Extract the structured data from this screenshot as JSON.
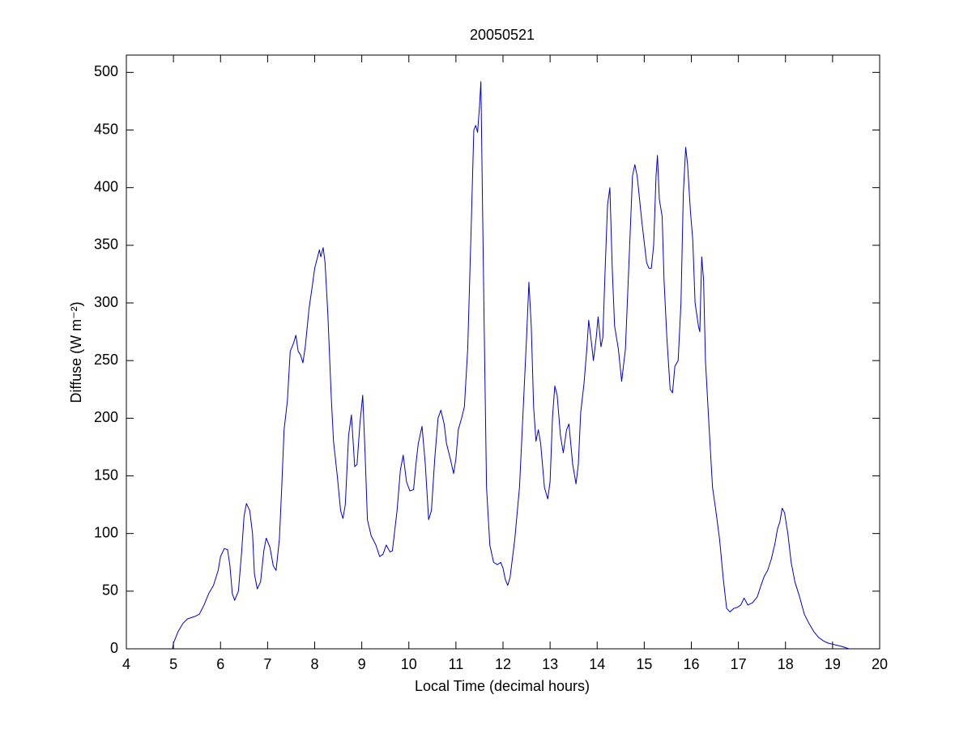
{
  "chart_data": {
    "type": "line",
    "title": "20050521",
    "xlabel": "Local Time (decimal hours)",
    "ylabel": "Diffuse (W m⁻²)",
    "color": "#0000cc",
    "xlim": [
      4,
      20
    ],
    "xticks": [
      4,
      5,
      6,
      7,
      8,
      9,
      10,
      11,
      12,
      13,
      14,
      15,
      16,
      17,
      18,
      19,
      20
    ],
    "ylim": [
      0,
      515
    ],
    "yticks": [
      0,
      50,
      100,
      150,
      200,
      250,
      300,
      350,
      400,
      450,
      500
    ],
    "x": [
      4.98,
      5.0,
      5.1,
      5.2,
      5.3,
      5.45,
      5.55,
      5.65,
      5.75,
      5.85,
      5.95,
      6.0,
      6.08,
      6.15,
      6.2,
      6.25,
      6.3,
      6.38,
      6.45,
      6.5,
      6.55,
      6.62,
      6.68,
      6.72,
      6.78,
      6.85,
      6.92,
      6.97,
      7.05,
      7.12,
      7.18,
      7.25,
      7.3,
      7.35,
      7.42,
      7.48,
      7.55,
      7.6,
      7.65,
      7.7,
      7.75,
      7.8,
      7.88,
      7.95,
      8.0,
      8.05,
      8.1,
      8.13,
      8.18,
      8.22,
      8.28,
      8.35,
      8.4,
      8.48,
      8.55,
      8.6,
      8.65,
      8.72,
      8.78,
      8.85,
      8.9,
      8.96,
      9.02,
      9.07,
      9.12,
      9.2,
      9.3,
      9.38,
      9.45,
      9.52,
      9.6,
      9.65,
      9.75,
      9.82,
      9.88,
      9.95,
      10.02,
      10.1,
      10.15,
      10.2,
      10.28,
      10.35,
      10.42,
      10.48,
      10.55,
      10.62,
      10.68,
      10.75,
      10.8,
      10.88,
      10.95,
      11.0,
      11.05,
      11.12,
      11.18,
      11.25,
      11.32,
      11.38,
      11.42,
      11.46,
      11.5,
      11.53,
      11.56,
      11.6,
      11.65,
      11.72,
      11.8,
      11.88,
      11.95,
      12.0,
      12.05,
      12.1,
      12.15,
      12.25,
      12.35,
      12.42,
      12.5,
      12.55,
      12.6,
      12.65,
      12.7,
      12.75,
      12.8,
      12.88,
      12.95,
      13.0,
      13.05,
      13.1,
      13.15,
      13.22,
      13.28,
      13.35,
      13.4,
      13.48,
      13.55,
      13.6,
      13.65,
      13.72,
      13.78,
      13.82,
      13.88,
      13.92,
      13.98,
      14.02,
      14.08,
      14.12,
      14.17,
      14.22,
      14.27,
      14.32,
      14.37,
      14.45,
      14.52,
      14.6,
      14.7,
      14.75,
      14.8,
      14.85,
      14.95,
      15.05,
      15.1,
      15.15,
      15.2,
      15.25,
      15.28,
      15.32,
      15.38,
      15.42,
      15.48,
      15.55,
      15.6,
      15.65,
      15.72,
      15.78,
      15.83,
      15.88,
      15.92,
      15.98,
      16.03,
      16.08,
      16.15,
      16.18,
      16.22,
      16.26,
      16.3,
      16.38,
      16.45,
      16.52,
      16.6,
      16.68,
      16.75,
      16.82,
      16.9,
      16.98,
      17.05,
      17.12,
      17.2,
      17.3,
      17.4,
      17.48,
      17.55,
      17.62,
      17.7,
      17.78,
      17.83,
      17.88,
      17.93,
      17.98,
      18.05,
      18.12,
      18.2,
      18.3,
      18.4,
      18.5,
      18.6,
      18.7,
      18.8,
      18.9,
      19.0,
      19.1,
      19.2,
      19.35
    ],
    "values": [
      0,
      5,
      15,
      22,
      26,
      28,
      30,
      38,
      48,
      55,
      68,
      80,
      87,
      86,
      72,
      48,
      42,
      50,
      85,
      115,
      126,
      120,
      100,
      65,
      52,
      58,
      85,
      96,
      88,
      72,
      68,
      95,
      140,
      190,
      215,
      258,
      265,
      272,
      258,
      255,
      248,
      262,
      295,
      315,
      330,
      338,
      346,
      340,
      348,
      335,
      290,
      220,
      180,
      150,
      120,
      113,
      125,
      185,
      203,
      158,
      160,
      195,
      220,
      170,
      112,
      98,
      90,
      80,
      82,
      90,
      84,
      85,
      120,
      155,
      168,
      145,
      137,
      138,
      160,
      178,
      193,
      160,
      112,
      120,
      165,
      200,
      207,
      195,
      178,
      165,
      152,
      165,
      190,
      200,
      210,
      260,
      360,
      450,
      454,
      448,
      470,
      492,
      400,
      280,
      140,
      90,
      75,
      73,
      75,
      70,
      60,
      55,
      62,
      95,
      140,
      200,
      270,
      318,
      280,
      210,
      180,
      190,
      178,
      140,
      130,
      145,
      200,
      228,
      220,
      185,
      170,
      190,
      195,
      160,
      143,
      160,
      205,
      230,
      260,
      285,
      265,
      250,
      270,
      288,
      262,
      270,
      330,
      385,
      400,
      330,
      280,
      260,
      232,
      260,
      360,
      410,
      420,
      410,
      370,
      335,
      330,
      330,
      350,
      410,
      428,
      390,
      375,
      320,
      270,
      225,
      222,
      245,
      250,
      300,
      395,
      435,
      420,
      380,
      355,
      300,
      280,
      275,
      340,
      320,
      250,
      190,
      140,
      120,
      95,
      60,
      35,
      32,
      35,
      36,
      38,
      44,
      38,
      40,
      45,
      55,
      63,
      68,
      78,
      92,
      104,
      110,
      122,
      118,
      100,
      75,
      58,
      45,
      30,
      22,
      15,
      10,
      7,
      5,
      4,
      3,
      2,
      0
    ]
  }
}
